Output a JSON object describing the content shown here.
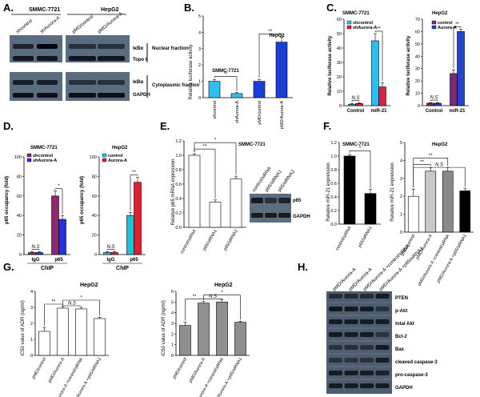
{
  "panels": {
    "A": {
      "letter": "A.",
      "cell_labels": [
        "SMMC-7721",
        "HepG2"
      ],
      "lanes": [
        "shcontrol",
        "shAurora-A",
        "pMD/control",
        "pMD/Aurora-A"
      ],
      "proteins": [
        "IκBα",
        "Topo I",
        "IκBα",
        "GAPDH"
      ],
      "fractions": [
        "Nuclear fraction",
        "Cytoplasmic fraction"
      ],
      "band_intensity": {
        "nuclear_ikba": [
          0.65,
          0.95,
          0.5,
          0.5
        ],
        "topo": [
          0.8,
          0.8,
          0.8,
          0.8
        ],
        "cyto_ikba": [
          0.7,
          0.7,
          0.5,
          0.5
        ],
        "gapdh": [
          0.85,
          0.85,
          0.85,
          0.85
        ]
      }
    },
    "B": {
      "letter": "B.",
      "ylabel": "Relative luciferase activity",
      "yticks": [
        "0",
        "1",
        "2",
        "3",
        "4",
        "5"
      ],
      "groups": [
        "SMMC-7721",
        "HepG2"
      ],
      "categories": [
        "shcontrol",
        "shAurora-A",
        "pMD/control",
        "pMD/Aurora-A"
      ],
      "values": [
        1.0,
        0.25,
        1.0,
        3.4
      ],
      "errors": [
        0.1,
        0.08,
        0.12,
        0.3
      ],
      "colors": [
        "#2ec0ee",
        "#2ec0ee",
        "#1a3fd6",
        "#1a3fd6"
      ],
      "sig": [
        "**",
        "**"
      ]
    },
    "C": {
      "letter": "C.",
      "left": {
        "title": "SMMC-7721",
        "ylabel": "Relative luciferase activity",
        "yticks": [
          "0",
          "10",
          "20",
          "30",
          "40",
          "50",
          "60"
        ],
        "legend": [
          "shcontrol",
          "shAurora-A"
        ],
        "xcats": [
          "Control",
          "miR-21"
        ],
        "series": [
          {
            "name": "shcontrol",
            "values": [
              1,
              45
            ],
            "errors": [
              0.5,
              5
            ],
            "color": "#28c0ee"
          },
          {
            "name": "shAurora-A",
            "values": [
              1.5,
              13
            ],
            "errors": [
              0.5,
              3
            ],
            "color": "#d8243e"
          }
        ],
        "sig": [
          "N.S",
          "**"
        ]
      },
      "right": {
        "title": "HepG2",
        "ylabel": "Relative luciferase activity",
        "yticks": [
          "0",
          "10",
          "20",
          "30",
          "40",
          "50",
          "60",
          "70"
        ],
        "legend": [
          "control",
          "Aurora-A"
        ],
        "xcats": [
          "Control",
          "miR-21"
        ],
        "series": [
          {
            "name": "control",
            "values": [
              2,
              26
            ],
            "errors": [
              0.5,
              3
            ],
            "color": "#7b2a79"
          },
          {
            "name": "Aurora-A",
            "values": [
              2,
              60
            ],
            "errors": [
              0.5,
              2
            ],
            "color": "#2244cc"
          }
        ],
        "sig": [
          "N.S",
          "**"
        ]
      }
    },
    "D": {
      "letter": "D.",
      "left": {
        "title": "SMMC-7721",
        "ylabel": "p65 occupancy (fold)",
        "yticks": [
          "0",
          "20",
          "40",
          "60",
          "80",
          "100"
        ],
        "legend": [
          "shcontrol",
          "shAurora-A"
        ],
        "xcats": [
          "IgG",
          "p65"
        ],
        "xlabel": "ChIP",
        "series": [
          {
            "name": "shcontrol",
            "values": [
              2,
              60
            ],
            "errors": [
              1,
              5
            ],
            "color": "#8b2a6e"
          },
          {
            "name": "shAurora-A",
            "values": [
              2,
              36
            ],
            "errors": [
              1,
              4
            ],
            "color": "#2233dd"
          }
        ],
        "sig": [
          "N.S",
          "*"
        ]
      },
      "right": {
        "title": "HepG2",
        "ylabel": "p65 occupancy (fold)",
        "yticks": [
          "0",
          "20",
          "40",
          "60",
          "80",
          "100"
        ],
        "legend": [
          "control",
          "Aurora-A"
        ],
        "xcats": [
          "IgG",
          "p65"
        ],
        "xlabel": "ChIP",
        "series": [
          {
            "name": "control",
            "values": [
              2,
              40
            ],
            "errors": [
              1,
              3
            ],
            "color": "#1bc4d9"
          },
          {
            "name": "Aurora-A",
            "values": [
              2,
              74
            ],
            "errors": [
              1,
              5
            ],
            "color": "#e02030"
          }
        ],
        "sig": [
          "N.S",
          "**"
        ]
      }
    },
    "E": {
      "letter": "E.",
      "title": "SMMC-7721",
      "ylabel": "Relative p65 mRNA expression",
      "yticks": [
        "0.0",
        "0.2",
        "0.4",
        "0.6",
        "0.8",
        "1.0",
        "1.2"
      ],
      "categories": [
        "control/siRNA",
        "p65/siRNA1",
        "p65/siRNA2"
      ],
      "values": [
        1.0,
        0.35,
        0.67
      ],
      "errors": [
        0.02,
        0.03,
        0.04
      ],
      "sig": [
        "**",
        "*"
      ],
      "blot_lanes": [
        "control/siRNA",
        "p65/siRNA1",
        "p65/siRNA2"
      ],
      "blot_proteins": [
        "p65",
        "GAPDH"
      ],
      "band_intensity": {
        "p65": [
          0.85,
          0.45,
          0.7
        ],
        "gapdh": [
          0.85,
          0.85,
          0.85
        ]
      }
    },
    "F": {
      "letter": "F.",
      "left": {
        "title": "SMMC-7721",
        "ylabel": "Relative miR-21 expression",
        "yticks": [
          "0.0",
          "0.2",
          "0.4",
          "0.6",
          "0.8",
          "1.0",
          "1.2"
        ],
        "categories": [
          "control/siRNA",
          "p65/siRNA1"
        ],
        "values": [
          1.0,
          0.45
        ],
        "errors": [
          0.02,
          0.06
        ],
        "colors": [
          "#000000",
          "#000000"
        ],
        "sig": [
          "*"
        ]
      },
      "right": {
        "title": "HepG2",
        "ylabel": "Relative miR-21 expression",
        "yticks": [
          "0",
          "1",
          "2",
          "3",
          "4",
          "5"
        ],
        "categories": [
          "pMD/control",
          "pMD/Aurora-A",
          "pMD/Aurora-A +control/siRNA",
          "pMD/Aurora-A +p65/siRNA1"
        ],
        "values": [
          2.0,
          3.4,
          3.4,
          2.3
        ],
        "errors": [
          0.4,
          0.2,
          0.2,
          0.15
        ],
        "colors": [
          "#ffffff",
          "#c9c9c9",
          "#8a8a8a",
          "#000000"
        ],
        "sig": [
          "**",
          "**",
          "N.S"
        ]
      }
    },
    "G": {
      "letter": "G.",
      "left": {
        "title": "HepG2",
        "ylabel": "IC50 value of ADR (ng/ml)",
        "yticks": [
          "0",
          "1",
          "2",
          "3",
          "4"
        ],
        "categories": [
          "pMD/control",
          "pMD/Aurora-A",
          "pMD/Aurora-A +control/siRNA",
          "pMD/Aurora-A +p65/siRNA1"
        ],
        "values": [
          1.5,
          2.95,
          2.9,
          2.3
        ],
        "errors": [
          0.25,
          0.1,
          0.1,
          0.08
        ],
        "color": "#ffffff",
        "sig": [
          "**",
          "N.S",
          "*"
        ]
      },
      "right": {
        "title": "HepG2",
        "ylabel": "IC50 value of ADR (ng/ml)",
        "yticks": [
          "0",
          "1",
          "2",
          "3",
          "4",
          "5",
          "6"
        ],
        "categories": [
          "pMD/control",
          "pMD/Aurora-A",
          "pMD/Aurora-A +control/siRNA",
          "pMD/Aurora-A +p65/siRNA1"
        ],
        "values": [
          2.8,
          4.9,
          5.0,
          3.1
        ],
        "errors": [
          0.3,
          0.15,
          0.2,
          0.1
        ],
        "color": "#8f8f8f",
        "sig": [
          "**",
          "N.S",
          "*"
        ]
      }
    },
    "H": {
      "letter": "H.",
      "lanes": [
        "pMD/Aurora-A",
        "pMD/Aurora-A",
        "pMD/Aurora-A +control/siRNA",
        "pMD/Aurora-A +p65/siRNA1"
      ],
      "proteins": [
        "PTEN",
        "p-Akt",
        "total Akt",
        "Bcl-2",
        "Bax",
        "cleaved caspase-3",
        "pro-caspase-3",
        "GAPDH"
      ]
    }
  },
  "chart_data": [
    {
      "type": "bar",
      "title": "B",
      "categories": [
        "shcontrol",
        "shAurora-A",
        "pMD/control",
        "pMD/Aurora-A"
      ],
      "values": [
        1.0,
        0.25,
        1.0,
        3.4
      ],
      "ylabel": "Relative luciferase activity",
      "ylim": [
        0,
        5
      ]
    },
    {
      "type": "bar",
      "title": "C SMMC-7721",
      "categories": [
        "Control",
        "miR-21"
      ],
      "series": [
        {
          "name": "shcontrol",
          "values": [
            1,
            45
          ]
        },
        {
          "name": "shAurora-A",
          "values": [
            1.5,
            13
          ]
        }
      ],
      "ylim": [
        0,
        60
      ]
    },
    {
      "type": "bar",
      "title": "C HepG2",
      "categories": [
        "Control",
        "miR-21"
      ],
      "series": [
        {
          "name": "control",
          "values": [
            2,
            26
          ]
        },
        {
          "name": "Aurora-A",
          "values": [
            2,
            60
          ]
        }
      ],
      "ylim": [
        0,
        70
      ]
    },
    {
      "type": "bar",
      "title": "D SMMC-7721",
      "categories": [
        "IgG",
        "p65"
      ],
      "series": [
        {
          "name": "shcontrol",
          "values": [
            2,
            60
          ]
        },
        {
          "name": "shAurora-A",
          "values": [
            2,
            36
          ]
        }
      ],
      "ylim": [
        0,
        100
      ]
    },
    {
      "type": "bar",
      "title": "D HepG2",
      "categories": [
        "IgG",
        "p65"
      ],
      "series": [
        {
          "name": "control",
          "values": [
            2,
            40
          ]
        },
        {
          "name": "Aurora-A",
          "values": [
            2,
            74
          ]
        }
      ],
      "ylim": [
        0,
        100
      ]
    },
    {
      "type": "bar",
      "title": "E SMMC-7721",
      "categories": [
        "control/siRNA",
        "p65/siRNA1",
        "p65/siRNA2"
      ],
      "values": [
        1.0,
        0.35,
        0.67
      ],
      "ylim": [
        0,
        1.2
      ]
    },
    {
      "type": "bar",
      "title": "F SMMC-7721",
      "categories": [
        "control/siRNA",
        "p65/siRNA1"
      ],
      "values": [
        1.0,
        0.45
      ],
      "ylim": [
        0,
        1.2
      ]
    },
    {
      "type": "bar",
      "title": "F HepG2",
      "categories": [
        "pMD/control",
        "pMD/Aurora-A",
        "pMD/Aurora-A +control/siRNA",
        "pMD/Aurora-A +p65/siRNA1"
      ],
      "values": [
        2.0,
        3.4,
        3.4,
        2.3
      ],
      "ylim": [
        0,
        5
      ]
    },
    {
      "type": "bar",
      "title": "G HepG2 (left)",
      "categories": [
        "pMD/control",
        "pMD/Aurora-A",
        "pMD/Aurora-A +control/siRNA",
        "pMD/Aurora-A +p65/siRNA1"
      ],
      "values": [
        1.5,
        2.95,
        2.9,
        2.3
      ],
      "ylim": [
        0,
        4
      ]
    },
    {
      "type": "bar",
      "title": "G HepG2 (right)",
      "categories": [
        "pMD/control",
        "pMD/Aurora-A",
        "pMD/Aurora-A +control/siRNA",
        "pMD/Aurora-A +p65/siRNA1"
      ],
      "values": [
        2.8,
        4.9,
        5.0,
        3.1
      ],
      "ylim": [
        0,
        6
      ]
    }
  ]
}
